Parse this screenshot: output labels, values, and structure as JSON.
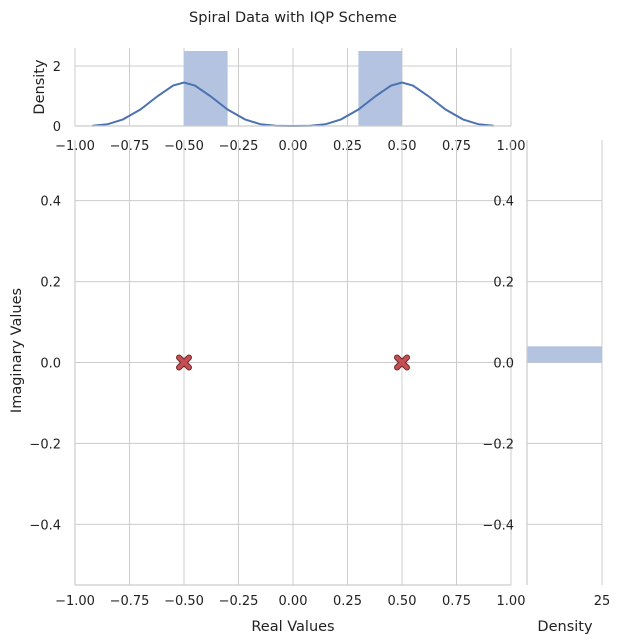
{
  "chart_data": {
    "type": "scatter",
    "title": "Spiral Data with IQP Scheme",
    "xlabel": "Real Values",
    "ylabel": "Imaginary Values",
    "xlim": [
      -1.0,
      1.0
    ],
    "ylim": [
      -0.55,
      0.55
    ],
    "x_ticks": [
      "−1.00",
      "−0.75",
      "−0.50",
      "−0.25",
      "0.00",
      "0.25",
      "0.50",
      "0.75",
      "1.00"
    ],
    "y_ticks": [
      "−0.4",
      "−0.2",
      "0.0",
      "0.2",
      "0.4"
    ],
    "grid": true,
    "points": [
      {
        "x": -0.5,
        "y": 0.0
      },
      {
        "x": 0.5,
        "y": 0.0
      }
    ],
    "marker": "x",
    "marker_color": "#c44e52",
    "top_marginal": {
      "type": "histogram+kde",
      "ylabel": "Density",
      "ylim": [
        0,
        2.6
      ],
      "y_ticks": [
        "0",
        "2"
      ],
      "bins": [
        {
          "x0": -0.5,
          "x1": -0.3,
          "density": 2.5
        },
        {
          "x0": 0.3,
          "x1": 0.5,
          "density": 2.5
        }
      ],
      "kde": [
        [
          -0.92,
          0.01
        ],
        [
          -0.85,
          0.06
        ],
        [
          -0.78,
          0.22
        ],
        [
          -0.7,
          0.55
        ],
        [
          -0.62,
          1.0
        ],
        [
          -0.55,
          1.35
        ],
        [
          -0.5,
          1.45
        ],
        [
          -0.45,
          1.35
        ],
        [
          -0.38,
          1.0
        ],
        [
          -0.3,
          0.55
        ],
        [
          -0.22,
          0.22
        ],
        [
          -0.15,
          0.06
        ],
        [
          -0.08,
          0.01
        ],
        [
          0.0,
          0.0
        ],
        [
          0.08,
          0.01
        ],
        [
          0.15,
          0.06
        ],
        [
          0.22,
          0.22
        ],
        [
          0.3,
          0.55
        ],
        [
          0.38,
          1.0
        ],
        [
          0.45,
          1.35
        ],
        [
          0.5,
          1.45
        ],
        [
          0.55,
          1.35
        ],
        [
          0.62,
          1.0
        ],
        [
          0.7,
          0.55
        ],
        [
          0.78,
          0.22
        ],
        [
          0.85,
          0.06
        ],
        [
          0.92,
          0.01
        ]
      ],
      "bar_color": "#b3c3e0",
      "kde_color": "#4c72b0"
    },
    "right_marginal": {
      "type": "histogram",
      "xlabel": "Density",
      "xlim": [
        0,
        25
      ],
      "x_ticks": [
        "25"
      ],
      "bins": [
        {
          "y0": 0.0,
          "y1": 0.04,
          "density": 25
        }
      ],
      "bar_color": "#b3c3e0"
    }
  }
}
